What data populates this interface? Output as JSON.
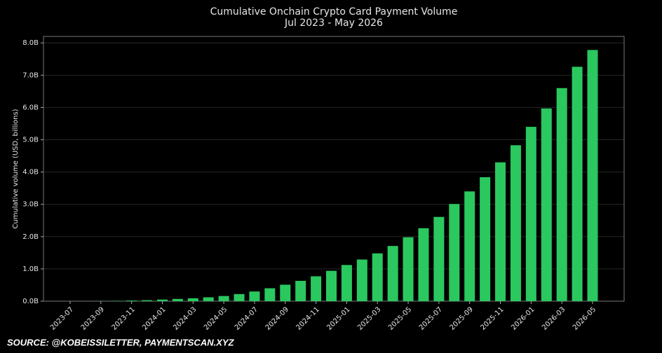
{
  "chart_data": {
    "type": "bar",
    "title": "Cumulative Onchain Crypto Card Payment Volume",
    "subtitle": "Jul 2023 - May 2026",
    "y_label": "Cumulative volume (USD, billions)",
    "source": "SOURCE: @KOBEISSILETTER,  PAYMENTSCAN.XYZ",
    "categories": [
      "2023-07",
      null,
      "2023-09",
      null,
      "2023-11",
      null,
      "2024-01",
      null,
      "2024-03",
      null,
      "2024-05",
      null,
      "2024-07",
      null,
      "2024-09",
      null,
      "2024-11",
      null,
      "2025-01",
      null,
      "2025-03",
      null,
      "2025-05",
      null,
      "2025-07",
      null,
      "2025-09",
      null,
      "2025-11",
      null,
      "2026-01",
      null,
      "2026-03",
      null,
      "2026-05"
    ],
    "values": [
      0,
      0,
      0.005,
      0.01,
      0.02,
      0.03,
      0.05,
      0.07,
      0.09,
      0.12,
      0.16,
      0.22,
      0.3,
      0.4,
      0.51,
      0.63,
      0.77,
      0.94,
      1.12,
      1.29,
      1.48,
      1.71,
      1.98,
      2.26,
      2.61,
      3.01,
      3.4,
      3.84,
      4.3,
      4.83,
      5.4,
      5.97,
      6.6,
      7.26,
      7.78
    ],
    "color": "#2ac85f",
    "ylim": [
      0,
      8.2
    ],
    "yticks": [
      {
        "value": 0,
        "label": "0.0B"
      },
      {
        "value": 1,
        "label": "1.0B"
      },
      {
        "value": 2,
        "label": "2.0B"
      },
      {
        "value": 3,
        "label": "3.0B"
      },
      {
        "value": 4,
        "label": "4.0B"
      },
      {
        "value": 5,
        "label": "5.0B"
      },
      {
        "value": 6,
        "label": "6.0B"
      },
      {
        "value": 7,
        "label": "7.0B"
      },
      {
        "value": 8,
        "label": "8.0B"
      }
    ],
    "grid": true
  }
}
